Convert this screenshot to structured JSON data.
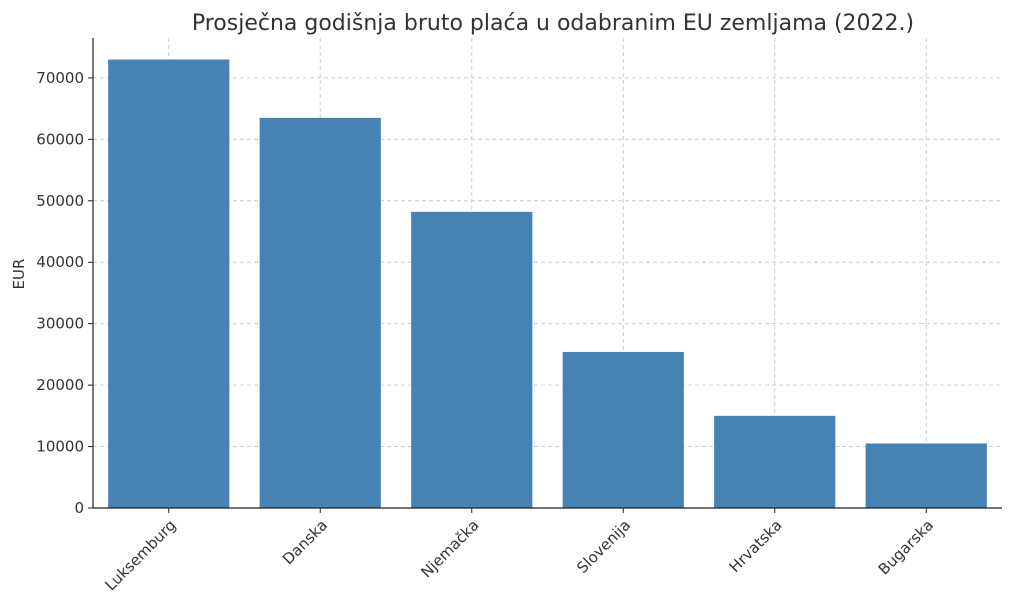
{
  "chart_data": {
    "type": "bar",
    "title": "Prosječna godišnja bruto plaća u odabranim EU zemljama (2022.)",
    "xlabel": "",
    "ylabel": "EUR",
    "categories": [
      "Luksemburg",
      "Danska",
      "Njemačka",
      "Slovenija",
      "Hrvatska",
      "Bugarska"
    ],
    "values": [
      73000,
      63500,
      48200,
      25400,
      15000,
      10500
    ],
    "yticks": [
      0,
      10000,
      20000,
      30000,
      40000,
      50000,
      60000,
      70000
    ],
    "ylim": [
      0,
      76500
    ],
    "grid": true,
    "bar_color": "#4682b4"
  }
}
